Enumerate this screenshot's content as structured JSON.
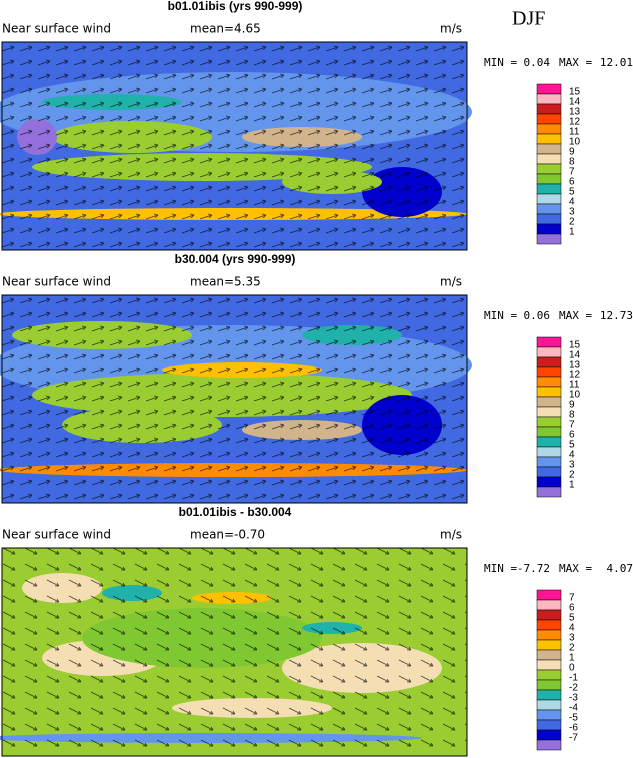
{
  "header": {
    "season": "DJF"
  },
  "panels": [
    {
      "title": "b01.01ibis (yrs 990-999)",
      "field_label": "Near surface wind",
      "mean_label": "mean=",
      "mean": "4.65",
      "units": "m/s",
      "min_label": "MIN =",
      "min": "0.04",
      "max_label": "MAX =",
      "max": "12.01",
      "colorbar": {
        "labels": [
          "15",
          "14",
          "13",
          "12",
          "11",
          "10",
          "9",
          "8",
          "7",
          "6",
          "5",
          "4",
          "3",
          "2",
          "1"
        ],
        "colors": [
          "#ff1493",
          "#ffb6c1",
          "#c81e1e",
          "#ff4500",
          "#ff8c00",
          "#ffc000",
          "#d2b48c",
          "#f5deb3",
          "#9acd32",
          "#7fc832",
          "#20b2aa",
          "#add8e6",
          "#6495ed",
          "#4169e1",
          "#0000cd",
          "#9370db"
        ]
      }
    },
    {
      "title": "b30.004 (yrs 990-999)",
      "field_label": "Near surface wind",
      "mean_label": "mean=",
      "mean": "5.35",
      "units": "m/s",
      "min_label": "MIN =",
      "min": "0.06",
      "max_label": "MAX =",
      "max": "12.73",
      "colorbar": {
        "labels": [
          "15",
          "14",
          "13",
          "12",
          "11",
          "10",
          "9",
          "8",
          "7",
          "6",
          "5",
          "4",
          "3",
          "2",
          "1"
        ],
        "colors": [
          "#ff1493",
          "#ffb6c1",
          "#c81e1e",
          "#ff4500",
          "#ff8c00",
          "#ffc000",
          "#d2b48c",
          "#f5deb3",
          "#9acd32",
          "#7fc832",
          "#20b2aa",
          "#add8e6",
          "#6495ed",
          "#4169e1",
          "#0000cd",
          "#9370db"
        ]
      }
    },
    {
      "title": "b01.01ibis - b30.004",
      "field_label": "Near surface wind",
      "mean_label": "mean=",
      "mean": "-0.70",
      "units": "m/s",
      "min_label": "MIN =",
      "min": "-7.72",
      "max_label": "MAX =",
      "max": "4.07",
      "colorbar": {
        "labels": [
          "7",
          "6",
          "5",
          "4",
          "3",
          "2",
          "1",
          "0",
          "-1",
          "-2",
          "-3",
          "-4",
          "-5",
          "-6",
          "-7"
        ],
        "colors": [
          "#ff1493",
          "#ffb6c1",
          "#c81e1e",
          "#ff4500",
          "#ff8c00",
          "#ffc000",
          "#d2b48c",
          "#f5deb3",
          "#9acd32",
          "#7fc832",
          "#20b2aa",
          "#add8e6",
          "#6495ed",
          "#4169e1",
          "#0000cd",
          "#9370db"
        ]
      }
    }
  ]
}
